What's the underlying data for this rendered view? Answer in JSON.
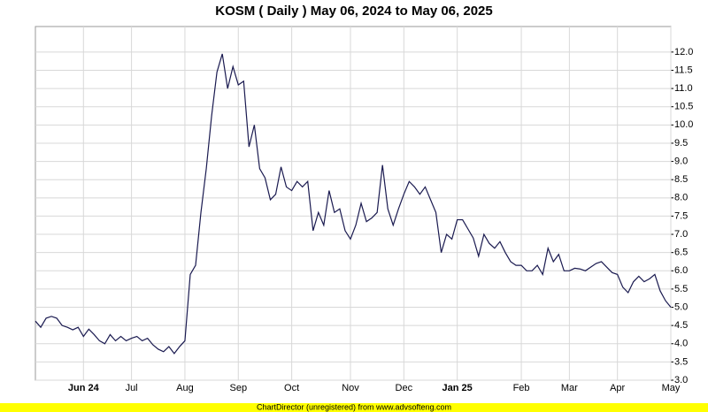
{
  "chart_data": {
    "type": "line",
    "title": "KOSM ( Daily ) May 06, 2024 to May 06, 2025",
    "categories": [
      null,
      null,
      null,
      null,
      null,
      null,
      null,
      null,
      null,
      "Jun 24",
      null,
      null,
      null,
      null,
      null,
      null,
      null,
      null,
      "Jul",
      null,
      null,
      null,
      null,
      null,
      null,
      null,
      null,
      null,
      "Aug",
      null,
      null,
      null,
      null,
      null,
      null,
      null,
      null,
      null,
      "Sep",
      null,
      null,
      null,
      null,
      null,
      null,
      null,
      null,
      null,
      "Oct",
      null,
      null,
      null,
      null,
      null,
      null,
      null,
      null,
      null,
      null,
      "Nov",
      null,
      null,
      null,
      null,
      null,
      null,
      null,
      null,
      null,
      "Dec",
      null,
      null,
      null,
      null,
      null,
      null,
      null,
      null,
      null,
      "Jan 25",
      null,
      null,
      null,
      null,
      null,
      null,
      null,
      null,
      null,
      null,
      null,
      "Feb",
      null,
      null,
      null,
      null,
      null,
      null,
      null,
      null,
      "Mar",
      null,
      null,
      null,
      null,
      null,
      null,
      null,
      null,
      "Apr",
      null,
      null,
      null,
      null,
      null,
      null,
      null,
      null,
      null,
      "May"
    ],
    "series": [
      {
        "name": "KOSM",
        "color": "#1a1a50",
        "values": [
          4.62,
          4.45,
          4.7,
          4.75,
          4.7,
          4.5,
          4.45,
          4.38,
          4.45,
          4.2,
          4.4,
          4.25,
          4.08,
          4.0,
          4.25,
          4.08,
          4.2,
          4.08,
          4.15,
          4.2,
          4.08,
          4.15,
          3.97,
          3.85,
          3.78,
          3.92,
          3.73,
          3.92,
          4.08,
          5.9,
          6.15,
          7.6,
          8.8,
          10.25,
          11.45,
          11.95,
          11.0,
          11.6,
          11.1,
          11.2,
          9.4,
          10.0,
          8.8,
          8.55,
          7.95,
          8.1,
          8.85,
          8.3,
          8.2,
          8.45,
          8.3,
          8.45,
          7.1,
          7.6,
          7.25,
          8.2,
          7.6,
          7.7,
          7.1,
          6.87,
          7.25,
          7.85,
          7.35,
          7.45,
          7.6,
          8.9,
          7.7,
          7.25,
          7.7,
          8.1,
          8.45,
          8.3,
          8.1,
          8.3,
          7.95,
          7.6,
          6.5,
          7.0,
          6.87,
          7.4,
          7.4,
          7.15,
          6.9,
          6.4,
          7.0,
          6.75,
          6.62,
          6.8,
          6.5,
          6.25,
          6.15,
          6.15,
          6.0,
          6.0,
          6.15,
          5.9,
          6.62,
          6.25,
          6.45,
          6.0,
          6.0,
          6.07,
          6.05,
          6.0,
          6.1,
          6.2,
          6.25,
          6.1,
          5.95,
          5.9,
          5.55,
          5.4,
          5.7,
          5.85,
          5.7,
          5.78,
          5.9,
          5.45,
          5.18,
          5.0
        ]
      }
    ],
    "ylim": [
      3.0,
      12.7
    ],
    "yticks": [
      {
        "value": 3,
        "label": "3.0"
      },
      3.5,
      {
        "value": 4,
        "label": "4.0"
      },
      4.5,
      {
        "value": 5,
        "label": "5.0"
      },
      5.5,
      {
        "value": 6,
        "label": "6.0"
      },
      6.5,
      {
        "value": 7,
        "label": "7.0"
      },
      7.5,
      {
        "value": 8,
        "label": "8.0"
      },
      8.5,
      {
        "value": 9,
        "label": "9.0"
      },
      9.5,
      {
        "value": 10,
        "label": "10.0"
      },
      10.5,
      {
        "value": 11,
        "label": "11.0"
      },
      11.5,
      {
        "value": 12,
        "label": "12.0"
      }
    ],
    "grid": true
  },
  "footer": "ChartDirector (unregistered) from www.advsofteng.com"
}
